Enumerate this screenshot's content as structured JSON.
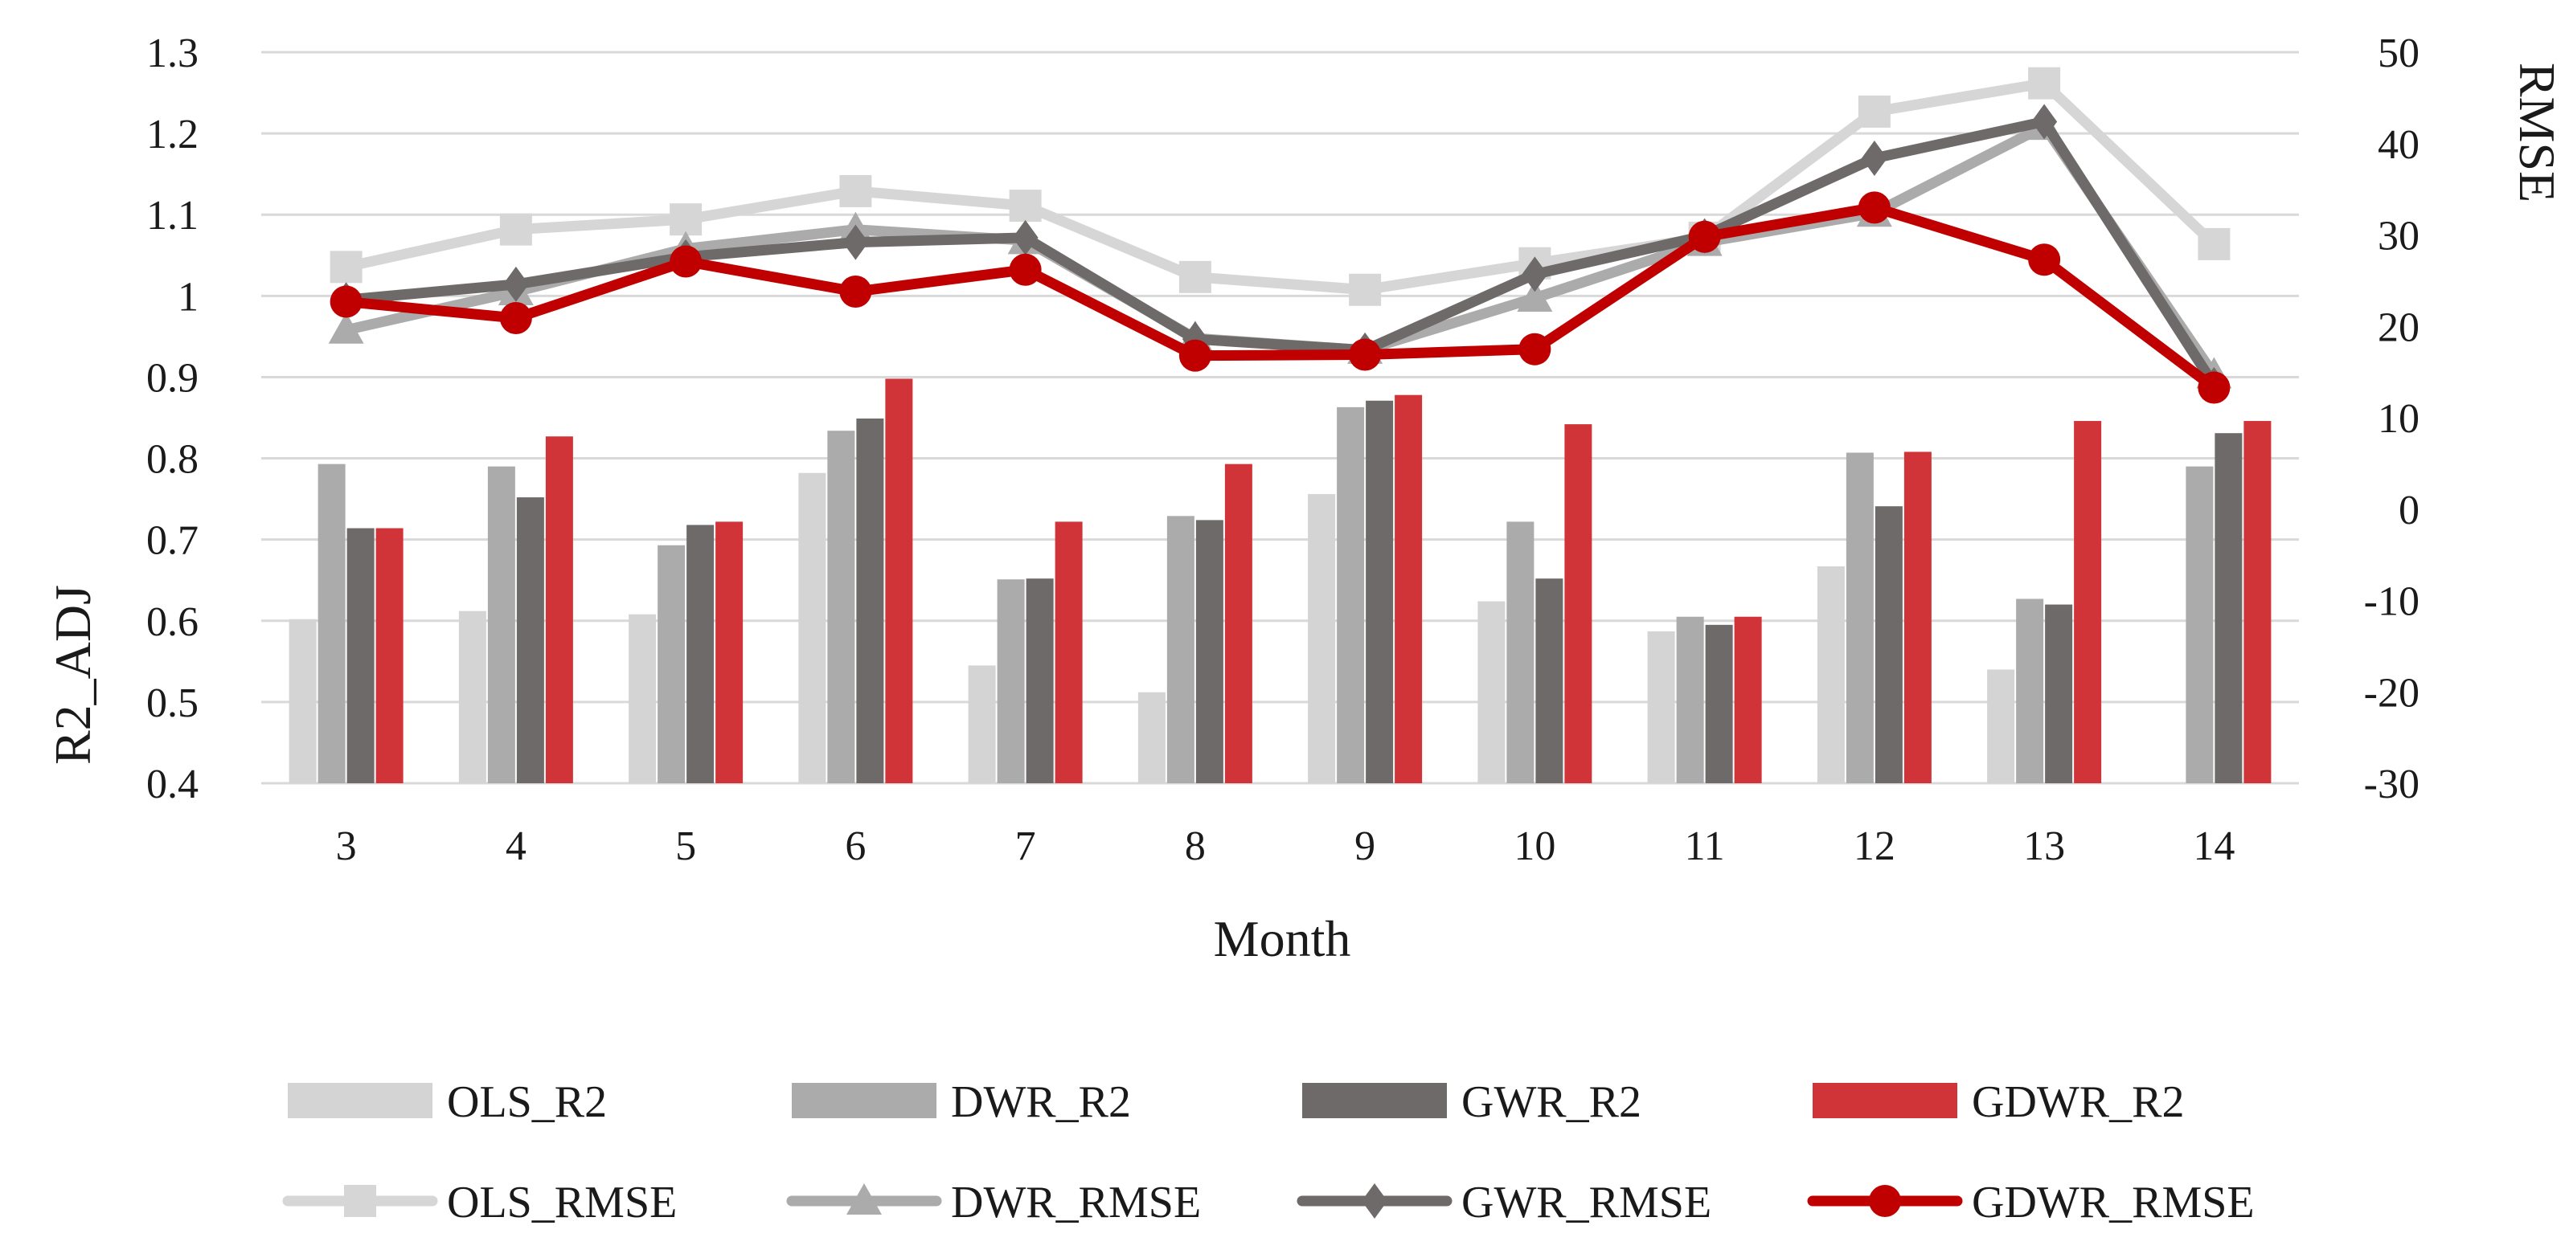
{
  "chart_data": {
    "type": "bar+line",
    "title": "",
    "xlabel": "Month",
    "ylabel_left": "R2_ADJ",
    "ylabel_right": "RMSE",
    "categories": [
      "3",
      "4",
      "5",
      "6",
      "7",
      "8",
      "9",
      "10",
      "11",
      "12",
      "13",
      "14"
    ],
    "ylim_left": [
      0.4,
      1.3
    ],
    "yticks_left": [
      "0.4",
      "0.5",
      "0.6",
      "0.7",
      "0.8",
      "0.9",
      "1",
      "1.1",
      "1.2",
      "1.3"
    ],
    "ylim_right": [
      -30,
      50
    ],
    "yticks_right": [
      "-30",
      "-20",
      "-10",
      "0",
      "10",
      "20",
      "30",
      "40",
      "50"
    ],
    "grid": true,
    "legend_position": "bottom",
    "bar_series": [
      {
        "name": "OLS_R2",
        "color": "#d4d4d4",
        "values": [
          0.602,
          0.612,
          0.608,
          0.782,
          0.545,
          0.512,
          0.756,
          0.624,
          0.587,
          0.667,
          0.54,
          null
        ]
      },
      {
        "name": "DWR_R2",
        "color": "#ababab",
        "values": [
          0.793,
          0.79,
          0.693,
          0.834,
          0.651,
          0.729,
          0.863,
          0.722,
          0.605,
          0.807,
          0.627,
          0.79
        ]
      },
      {
        "name": "GWR_R2",
        "color": "#6f6a6a",
        "values": [
          0.714,
          0.752,
          0.718,
          0.849,
          0.652,
          0.724,
          0.871,
          0.652,
          0.595,
          0.741,
          0.62,
          0.831
        ]
      },
      {
        "name": "GDWR_R2",
        "color": "#d13438",
        "values": [
          0.714,
          0.827,
          0.722,
          0.898,
          0.722,
          0.793,
          0.878,
          0.842,
          0.605,
          0.808,
          0.846,
          0.846
        ]
      }
    ],
    "line_series": [
      {
        "name": "OLS_RMSE",
        "color": "#d6d6d6",
        "marker": "square",
        "values": [
          26.5,
          30.6,
          31.7,
          34.8,
          33.2,
          25.4,
          24.0,
          26.9,
          29.7,
          43.5,
          46.6,
          29.0
        ]
      },
      {
        "name": "DWR_RMSE",
        "color": "#ababab",
        "marker": "triangle",
        "values": [
          19.6,
          23.8,
          28.5,
          30.6,
          29.4,
          18.7,
          17.4,
          23.1,
          29.2,
          32.4,
          41.9,
          14.7
        ]
      },
      {
        "name": "GWR_RMSE",
        "color": "#6f6a6a",
        "marker": "diamond",
        "values": [
          22.9,
          24.6,
          27.6,
          29.2,
          29.7,
          18.6,
          17.4,
          25.7,
          29.9,
          38.4,
          42.4,
          13.6
        ]
      },
      {
        "name": "GDWR_RMSE",
        "color": "#c00000",
        "marker": "circle",
        "values": [
          22.7,
          20.9,
          27.1,
          23.8,
          26.2,
          16.8,
          16.9,
          17.5,
          29.8,
          33.0,
          27.3,
          13.3
        ]
      }
    ]
  }
}
